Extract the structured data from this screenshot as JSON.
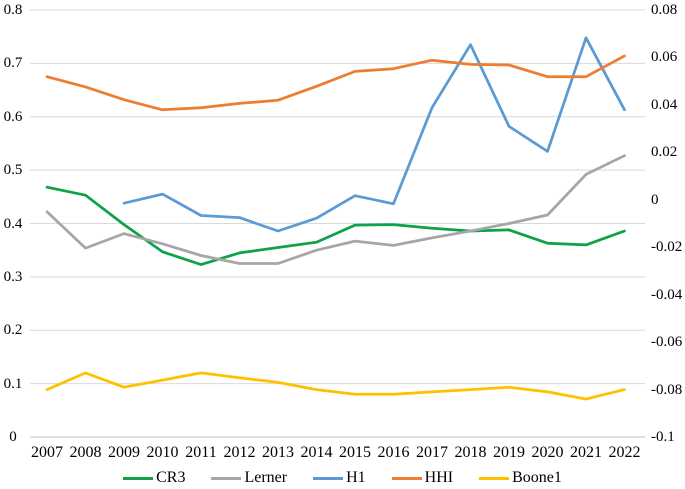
{
  "chart_data": {
    "type": "line",
    "title": "",
    "xlabel": "",
    "ylabel": "",
    "grid": true,
    "legend_position": "bottom",
    "x": [
      2007,
      2008,
      2009,
      2010,
      2011,
      2012,
      2013,
      2014,
      2015,
      2016,
      2017,
      2018,
      2019,
      2020,
      2021,
      2022
    ],
    "series": [
      {
        "name": "CR3",
        "color": "#0FA14A",
        "axis": "left",
        "values": [
          0.468,
          0.453,
          0.398,
          0.347,
          0.323,
          0.345,
          0.355,
          0.365,
          0.397,
          0.398,
          0.391,
          0.386,
          0.388,
          0.363,
          0.36,
          0.386
        ]
      },
      {
        "name": "Lerner",
        "color": "#A6A6A6",
        "axis": "left",
        "values": [
          0.422,
          0.354,
          0.381,
          0.362,
          0.34,
          0.325,
          0.325,
          0.35,
          0.367,
          0.359,
          0.373,
          0.386,
          0.4,
          0.416,
          0.492,
          0.527
        ]
      },
      {
        "name": "H1",
        "color": "#5B9BD5",
        "axis": "left",
        "values": [
          null,
          null,
          0.438,
          0.455,
          0.415,
          0.411,
          0.386,
          0.41,
          0.452,
          0.437,
          0.617,
          0.735,
          0.582,
          0.535,
          0.748,
          0.613
        ]
      },
      {
        "name": "HHI",
        "color": "#ED7D31",
        "axis": "left",
        "values": [
          0.675,
          0.656,
          0.632,
          0.613,
          0.617,
          0.625,
          0.631,
          0.657,
          0.685,
          0.69,
          0.706,
          0.698,
          0.697,
          0.675,
          0.675,
          0.714
        ]
      },
      {
        "name": "Boone1",
        "color": "#FFC000",
        "axis": "right",
        "values": [
          -0.08,
          -0.073,
          -0.079,
          -0.076,
          -0.073,
          -0.075,
          -0.077,
          -0.08,
          -0.082,
          -0.082,
          -0.081,
          -0.08,
          -0.079,
          -0.081,
          -0.084,
          -0.08
        ]
      }
    ],
    "left_axis": {
      "min": 0,
      "max": 0.8,
      "tick_labels": [
        "0.8",
        "0.7",
        "0.6",
        "0.5",
        "0.4",
        "0.3",
        "0.2",
        "0.1",
        "0"
      ],
      "tick_values": [
        0.8,
        0.7,
        0.6,
        0.5,
        0.4,
        0.3,
        0.2,
        0.1,
        0
      ]
    },
    "right_axis": {
      "min": -0.1,
      "max": 0.08,
      "tick_labels": [
        "0.08",
        "0.06",
        "0.04",
        "0.02",
        "0",
        "-0.02",
        "-0.04",
        "-0.06",
        "-0.08",
        "-0.1"
      ],
      "tick_values": [
        0.08,
        0.06,
        0.04,
        0.02,
        0,
        -0.02,
        -0.04,
        -0.06,
        -0.08,
        -0.1
      ]
    },
    "colors": {
      "gridline": "#D9D9D9",
      "axis_line": "#BFBFBF",
      "text": "#000000",
      "background": "#FFFFFF"
    }
  }
}
